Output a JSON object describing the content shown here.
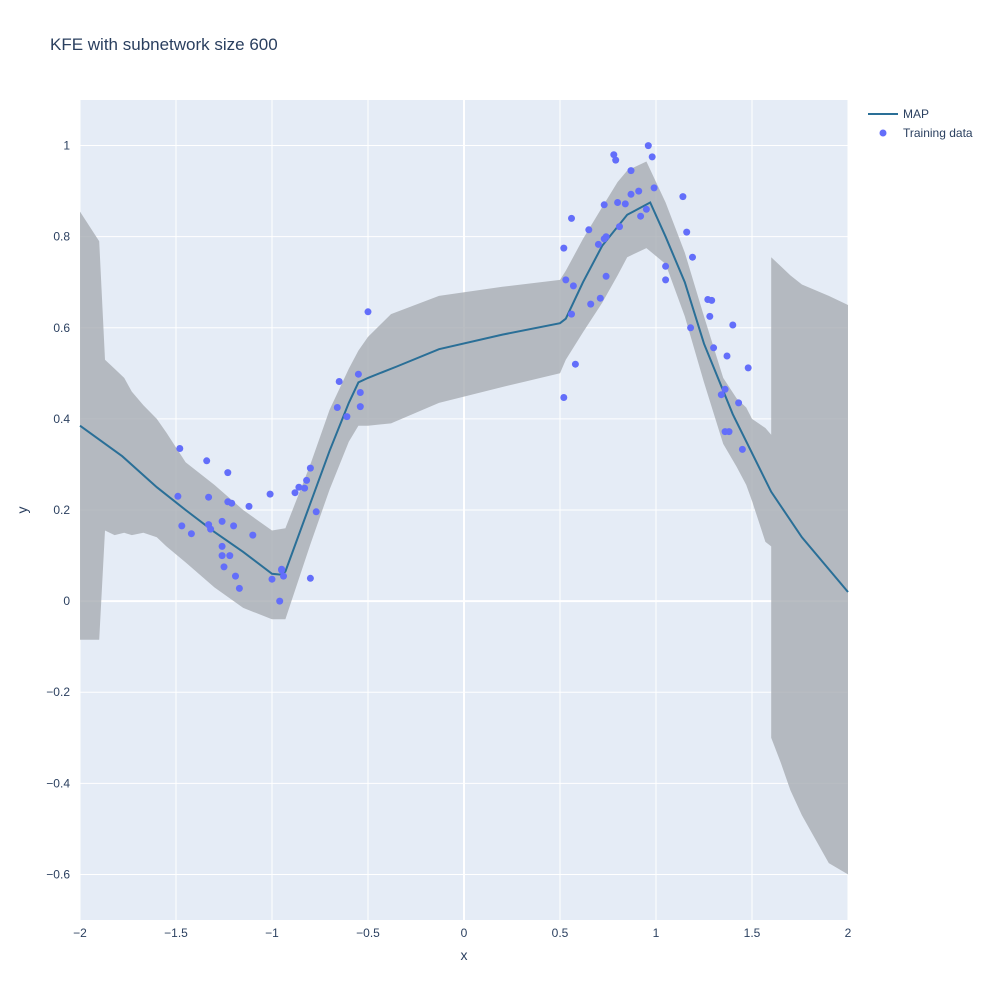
{
  "chart_data": {
    "type": "line",
    "title": "KFE with subnetwork size 600",
    "xlabel": "x",
    "ylabel": "y",
    "xlim": [
      -2,
      2
    ],
    "ylim": [
      -0.7,
      1.1
    ],
    "x_ticks": [
      -2,
      -1.5,
      -1,
      -0.5,
      0,
      0.5,
      1,
      1.5,
      2
    ],
    "x_tick_labels": [
      "−2",
      "−1.5",
      "−1",
      "−0.5",
      "0",
      "0.5",
      "1",
      "1.5",
      "2"
    ],
    "y_ticks": [
      -0.6,
      -0.4,
      -0.2,
      0,
      0.2,
      0.4,
      0.6,
      0.8,
      1
    ],
    "y_tick_labels": [
      "−0.6",
      "−0.4",
      "−0.2",
      "0",
      "0.2",
      "0.4",
      "0.6",
      "0.8",
      "1"
    ],
    "grid": true,
    "legend_position": "top-right",
    "colors": {
      "plot_bg": "#e5ecf6",
      "grid": "#ffffff",
      "map_line": "#2a6f97",
      "points": "#636efa",
      "band": "#a8acb3"
    },
    "series": [
      {
        "name": "MAP",
        "kind": "line",
        "x": [
          -2,
          -1.78,
          -1.6,
          -1.45,
          -1.3,
          -1.15,
          -1.0,
          -0.95,
          -0.93,
          -0.8,
          -0.7,
          -0.6,
          -0.55,
          -0.5,
          -0.35,
          -0.13,
          0.2,
          0.5,
          0.53,
          0.62,
          0.72,
          0.85,
          0.97,
          1.05,
          1.15,
          1.25,
          1.4,
          1.6,
          1.76,
          2.0
        ],
        "y": [
          0.385,
          0.318,
          0.25,
          0.2,
          0.152,
          0.108,
          0.06,
          0.058,
          0.065,
          0.215,
          0.33,
          0.435,
          0.48,
          0.49,
          0.515,
          0.553,
          0.585,
          0.61,
          0.62,
          0.7,
          0.78,
          0.848,
          0.875,
          0.8,
          0.7,
          0.565,
          0.41,
          0.24,
          0.14,
          0.02
        ]
      },
      {
        "name": "uncertainty band",
        "kind": "band",
        "x": [
          -2,
          -1.9,
          -1.87,
          -1.82,
          -1.77,
          -1.73,
          -1.67,
          -1.6,
          -1.55,
          -1.45,
          -1.3,
          -1.15,
          -1.0,
          -0.93,
          -0.8,
          -0.7,
          -0.6,
          -0.55,
          -0.5,
          -0.38,
          -0.13,
          0.2,
          0.5,
          0.53,
          0.62,
          0.72,
          0.8,
          0.85,
          0.95,
          1.05,
          1.15,
          1.25,
          1.35,
          1.42,
          1.47,
          1.5,
          1.57,
          1.6,
          1.6,
          1.65,
          1.7,
          1.76,
          1.9,
          2.0
        ],
        "upper": [
          0.855,
          0.79,
          0.53,
          0.51,
          0.49,
          0.46,
          0.43,
          0.4,
          0.37,
          0.305,
          0.255,
          0.2,
          0.155,
          0.16,
          0.3,
          0.42,
          0.51,
          0.55,
          0.58,
          0.63,
          0.67,
          0.69,
          0.705,
          0.725,
          0.795,
          0.865,
          0.92,
          0.945,
          0.965,
          0.875,
          0.765,
          0.625,
          0.49,
          0.445,
          0.425,
          0.4,
          0.38,
          0.365,
          0.755,
          0.735,
          0.715,
          0.695,
          0.67,
          0.65
        ],
        "lower": [
          -0.085,
          -0.085,
          0.155,
          0.145,
          0.15,
          0.145,
          0.15,
          0.14,
          0.12,
          0.085,
          0.03,
          -0.015,
          -0.04,
          -0.04,
          0.125,
          0.245,
          0.35,
          0.385,
          0.385,
          0.39,
          0.435,
          0.47,
          0.5,
          0.53,
          0.59,
          0.655,
          0.715,
          0.755,
          0.775,
          0.74,
          0.625,
          0.48,
          0.345,
          0.295,
          0.255,
          0.22,
          0.13,
          0.12,
          -0.3,
          -0.355,
          -0.415,
          -0.47,
          -0.575,
          -0.6
        ]
      },
      {
        "name": "Training data",
        "kind": "scatter",
        "x": [
          -1.49,
          -1.48,
          -1.47,
          -1.42,
          -1.34,
          -1.33,
          -1.33,
          -1.32,
          -1.26,
          -1.26,
          -1.26,
          -1.25,
          -1.23,
          -1.23,
          -1.22,
          -1.21,
          -1.2,
          -1.19,
          -1.17,
          -1.12,
          -1.1,
          -1.01,
          -1.0,
          -0.96,
          -0.95,
          -0.95,
          -0.94,
          -0.88,
          -0.86,
          -0.83,
          -0.82,
          -0.8,
          -0.8,
          -0.77,
          -0.66,
          -0.65,
          -0.61,
          -0.55,
          -0.54,
          -0.54,
          -0.5,
          0.52,
          0.52,
          0.53,
          0.56,
          0.56,
          0.57,
          0.58,
          0.65,
          0.66,
          0.7,
          0.71,
          0.73,
          0.73,
          0.74,
          0.74,
          0.78,
          0.79,
          0.8,
          0.81,
          0.84,
          0.87,
          0.87,
          0.91,
          0.92,
          0.95,
          0.96,
          0.98,
          0.99,
          1.05,
          1.05,
          1.14,
          1.16,
          1.18,
          1.19,
          1.27,
          1.28,
          1.29,
          1.3,
          1.34,
          1.36,
          1.36,
          1.37,
          1.38,
          1.4,
          1.43,
          1.45,
          1.48
        ],
        "y": [
          0.23,
          0.335,
          0.165,
          0.148,
          0.308,
          0.228,
          0.168,
          0.158,
          0.175,
          0.12,
          0.1,
          0.075,
          0.282,
          0.218,
          0.1,
          0.215,
          0.165,
          0.055,
          0.028,
          0.208,
          0.145,
          0.235,
          0.048,
          0.0,
          0.068,
          0.07,
          0.055,
          0.238,
          0.25,
          0.248,
          0.265,
          0.292,
          0.05,
          0.196,
          0.425,
          0.482,
          0.405,
          0.498,
          0.458,
          0.427,
          0.635,
          0.775,
          0.447,
          0.705,
          0.63,
          0.84,
          0.692,
          0.52,
          0.815,
          0.652,
          0.783,
          0.665,
          0.795,
          0.87,
          0.8,
          0.713,
          0.98,
          0.968,
          0.875,
          0.822,
          0.872,
          0.945,
          0.893,
          0.9,
          0.845,
          0.86,
          1.0,
          0.975,
          0.907,
          0.735,
          0.705,
          0.888,
          0.81,
          0.6,
          0.755,
          0.662,
          0.625,
          0.66,
          0.556,
          0.453,
          0.465,
          0.372,
          0.538,
          0.372,
          0.606,
          0.435,
          0.333,
          0.512
        ]
      }
    ]
  }
}
